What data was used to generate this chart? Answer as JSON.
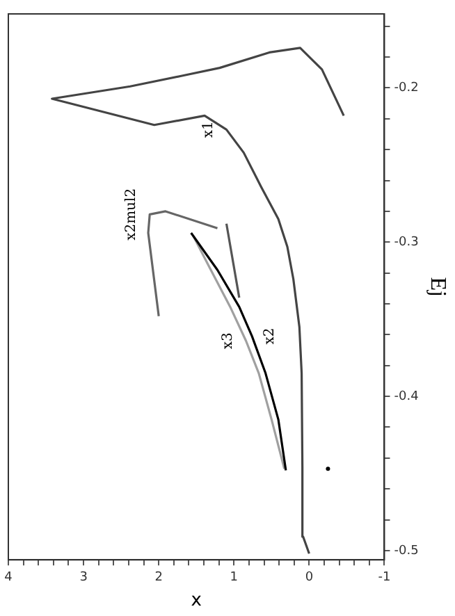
{
  "chart_data": {
    "type": "line",
    "xlabel": "x",
    "ylabel": "Ej",
    "ylim": [
      -0.506,
      -0.152
    ],
    "xlim": [
      4,
      -1
    ],
    "yticks": [
      -0.5,
      {
        "value": -0.48,
        "label": null
      },
      {
        "value": -0.46,
        "label": null
      },
      {
        "value": -0.44,
        "label": null
      },
      {
        "value": -0.42,
        "label": null
      },
      -0.4,
      {
        "value": -0.38,
        "label": null
      },
      {
        "value": -0.36,
        "label": null
      },
      {
        "value": -0.34,
        "label": null
      },
      {
        "value": -0.32,
        "label": null
      },
      -0.3,
      {
        "value": -0.28,
        "label": null
      },
      {
        "value": -0.26,
        "label": null
      },
      {
        "value": -0.24,
        "label": null
      },
      {
        "value": -0.22,
        "label": null
      },
      -0.2,
      {
        "value": -0.18,
        "label": null
      },
      {
        "value": -0.16,
        "label": null
      }
    ],
    "xticks": [
      -1,
      {
        "value": -0.8,
        "label": null
      },
      {
        "value": -0.6,
        "label": null
      },
      {
        "value": -0.4,
        "label": null
      },
      {
        "value": -0.2,
        "label": null
      },
      0,
      {
        "value": 0.2,
        "label": null
      },
      {
        "value": 0.4,
        "label": null
      },
      {
        "value": 0.6,
        "label": null
      },
      {
        "value": 0.8,
        "label": null
      },
      1,
      {
        "value": 1.2,
        "label": null
      },
      {
        "value": 1.4,
        "label": null
      },
      {
        "value": 1.6,
        "label": null
      },
      {
        "value": 1.8,
        "label": null
      },
      2,
      {
        "value": 2.2,
        "label": null
      },
      {
        "value": 2.4,
        "label": null
      },
      {
        "value": 2.6,
        "label": null
      },
      {
        "value": 2.8,
        "label": null
      },
      3,
      {
        "value": 3.2,
        "label": null
      },
      {
        "value": 3.4,
        "label": null
      },
      {
        "value": 3.6,
        "label": null
      },
      {
        "value": 3.8,
        "label": null
      },
      4
    ],
    "grid": false,
    "legend": false,
    "series": [
      {
        "name": "x1",
        "color": "#444444",
        "values": [
          -0.502,
          -0.491,
          -0.446,
          -0.385,
          -0.355,
          -0.324,
          -0.303,
          -0.285,
          -0.264,
          -0.242,
          -0.227,
          -0.218,
          -0.224,
          -0.207,
          -0.199,
          -0.192,
          -0.187,
          -0.177,
          -0.174,
          -0.188,
          -0.218
        ],
        "x": [
          0,
          0.08,
          0.09,
          0.1,
          0.13,
          0.21,
          0.29,
          0.41,
          0.64,
          0.87,
          1.1,
          1.39,
          2.06,
          3.42,
          2.38,
          1.68,
          1.19,
          0.53,
          0.12,
          -0.17,
          -0.46
        ]
      },
      {
        "name": "x2",
        "color": "#000000",
        "values": [
          -0.448,
          -0.415,
          -0.385,
          -0.361,
          -0.342,
          -0.318,
          -0.294
        ],
        "x": [
          0.31,
          0.41,
          0.58,
          0.76,
          0.93,
          1.22,
          1.57
        ]
      },
      {
        "name": "x3",
        "color": "#a0a0a0",
        "values": [
          -0.447,
          -0.415,
          -0.385,
          -0.364,
          -0.342,
          -0.315,
          -0.296
        ],
        "x": [
          0.33,
          0.5,
          0.67,
          0.84,
          1.05,
          1.34,
          1.54
        ]
      },
      {
        "color": "#555555",
        "values": [
          -0.336,
          -0.288
        ],
        "x": [
          0.93,
          1.1
        ]
      },
      {
        "name": "x2mul2",
        "color": "#666666",
        "values": [
          -0.348,
          -0.294,
          -0.282,
          -0.28,
          -0.291
        ],
        "x": [
          2.0,
          2.14,
          2.12,
          1.91,
          1.22
        ]
      },
      {
        "type": "scatter",
        "color": "#000000",
        "values": [
          -0.447
        ],
        "x": [
          -0.25
        ]
      }
    ]
  }
}
